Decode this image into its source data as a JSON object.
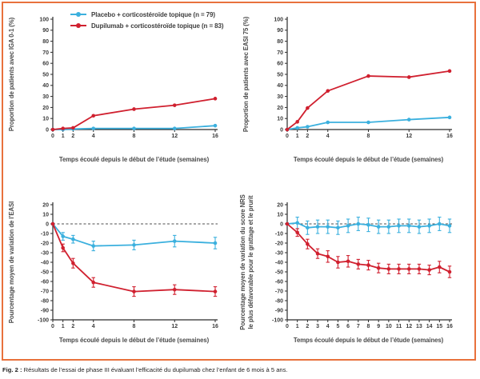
{
  "figure": {
    "caption_label": "Fig. 2 :",
    "caption_text": "Résultats de l’essai de phase III évaluant l’efficacité du dupilumab chez l’enfant de 6 mois à 5 ans.",
    "border_color": "#E8713C"
  },
  "colors": {
    "placebo": "#3BB0DE",
    "dupilumab": "#D0202F",
    "axis": "#2b2b2b",
    "zero_line": "#4d4d4d"
  },
  "legend": {
    "items": [
      {
        "label": "Placebo + corticostéroïde topique (n = 79)",
        "color": "#3BB0DE"
      },
      {
        "label": "Dupilumab + corticostéroïde topique (n = 83)",
        "color": "#D0202F"
      }
    ]
  },
  "chart_data": [
    {
      "type": "line",
      "position": "top-left",
      "ylabel": "Proportion de patients avec IGA 0-1 (%)",
      "xlabel": "Temps écoulé depuis le début de l’étude (semaines)",
      "ylim": [
        0,
        100
      ],
      "ytick_step": 10,
      "xlim": [
        0,
        16
      ],
      "xticks": [
        0,
        1,
        2,
        4,
        8,
        12,
        16
      ],
      "zero_line_dashed": false,
      "series": [
        {
          "name": "Placebo + corticostéroïde topique",
          "color_key": "placebo",
          "x": [
            0,
            1,
            2,
            4,
            8,
            12,
            16
          ],
          "y": [
            0,
            0,
            0.5,
            1,
            1,
            1,
            3.5
          ]
        },
        {
          "name": "Dupilumab + corticostéroïde topique",
          "color_key": "dupilumab",
          "x": [
            0,
            1,
            2,
            4,
            8,
            12,
            16
          ],
          "y": [
            0,
            1,
            1.5,
            12.5,
            18.5,
            22,
            28
          ]
        }
      ]
    },
    {
      "type": "line",
      "position": "top-right",
      "ylabel": "Proportion de patients avec EASI 75 (%)",
      "xlabel": "Temps écoulé depuis le début de l’étude (semaines)",
      "ylim": [
        0,
        100
      ],
      "ytick_step": 10,
      "xlim": [
        0,
        16
      ],
      "xticks": [
        0,
        1,
        2,
        4,
        8,
        12,
        16
      ],
      "zero_line_dashed": false,
      "series": [
        {
          "name": "Placebo + corticostéroïde topique",
          "color_key": "placebo",
          "x": [
            0,
            1,
            2,
            4,
            8,
            12,
            16
          ],
          "y": [
            0,
            1.5,
            2.5,
            6.5,
            6.5,
            9,
            11
          ]
        },
        {
          "name": "Dupilumab + corticostéroïde topique",
          "color_key": "dupilumab",
          "x": [
            0,
            1,
            2,
            4,
            8,
            12,
            16
          ],
          "y": [
            0,
            7,
            19.5,
            35,
            48.5,
            47.5,
            53
          ]
        }
      ]
    },
    {
      "type": "line",
      "position": "bottom-left",
      "ylabel": "Pourcentage moyen de variation de l’EASI",
      "xlabel": "Temps écoulé depuis le début de l’étude (semaines)",
      "ylim": [
        -100,
        20
      ],
      "ytick_step": 10,
      "xlim": [
        0,
        16
      ],
      "xticks": [
        0,
        1,
        2,
        4,
        8,
        12,
        16
      ],
      "zero_line_dashed": true,
      "series": [
        {
          "name": "Placebo + corticostéroïde topique",
          "color_key": "placebo",
          "x": [
            0,
            1,
            2,
            4,
            8,
            12,
            16
          ],
          "y": [
            0,
            -13,
            -16,
            -23,
            -22,
            -18,
            -20
          ],
          "err": [
            0,
            4,
            4,
            5,
            5,
            6,
            6
          ]
        },
        {
          "name": "Dupilumab + corticostéroïde topique",
          "color_key": "dupilumab",
          "x": [
            0,
            1,
            2,
            4,
            8,
            12,
            16
          ],
          "y": [
            0,
            -25,
            -41,
            -61,
            -70.5,
            -68.5,
            -70.5
          ],
          "err": [
            0,
            4,
            5,
            5,
            5,
            5,
            5
          ]
        }
      ]
    },
    {
      "type": "line",
      "position": "bottom-right",
      "ylabel": [
        "Pourcentage moyen de variation du score NRS",
        "le plus défavorable pour le grattage et le prurit"
      ],
      "xlabel": "Temps écoulé depuis le début de l’étude (semaines)",
      "ylim": [
        -100,
        20
      ],
      "ytick_step": 10,
      "xlim": [
        0,
        16
      ],
      "xticks": [
        0,
        1,
        2,
        3,
        4,
        5,
        6,
        7,
        8,
        9,
        10,
        11,
        12,
        13,
        14,
        15,
        16
      ],
      "zero_line_dashed": true,
      "series": [
        {
          "name": "Placebo + corticostéroïde topique",
          "color_key": "placebo",
          "x": [
            0,
            1,
            2,
            3,
            4,
            5,
            6,
            7,
            8,
            9,
            10,
            11,
            12,
            13,
            14,
            15,
            16
          ],
          "y": [
            0,
            1,
            -4,
            -3,
            -3,
            -4,
            -2,
            0,
            -1,
            -3,
            -3,
            -2,
            -2,
            -3,
            -2,
            0,
            -2
          ],
          "err": [
            0,
            6,
            7,
            7,
            7,
            7,
            7,
            7,
            7,
            7,
            7,
            7,
            7,
            7,
            7,
            7,
            7
          ]
        },
        {
          "name": "Dupilumab + corticostéroïde topique",
          "color_key": "dupilumab",
          "x": [
            0,
            1,
            2,
            3,
            4,
            5,
            6,
            7,
            8,
            9,
            10,
            11,
            12,
            13,
            14,
            15,
            16
          ],
          "y": [
            0,
            -9,
            -21,
            -31,
            -34,
            -40,
            -39,
            -42,
            -43,
            -46,
            -47,
            -47,
            -47,
            -47,
            -48,
            -45,
            -50
          ],
          "err": [
            0,
            4,
            5,
            5,
            6,
            6,
            6,
            5,
            5,
            5,
            5,
            5,
            5,
            5,
            5,
            6,
            6
          ]
        }
      ]
    }
  ]
}
